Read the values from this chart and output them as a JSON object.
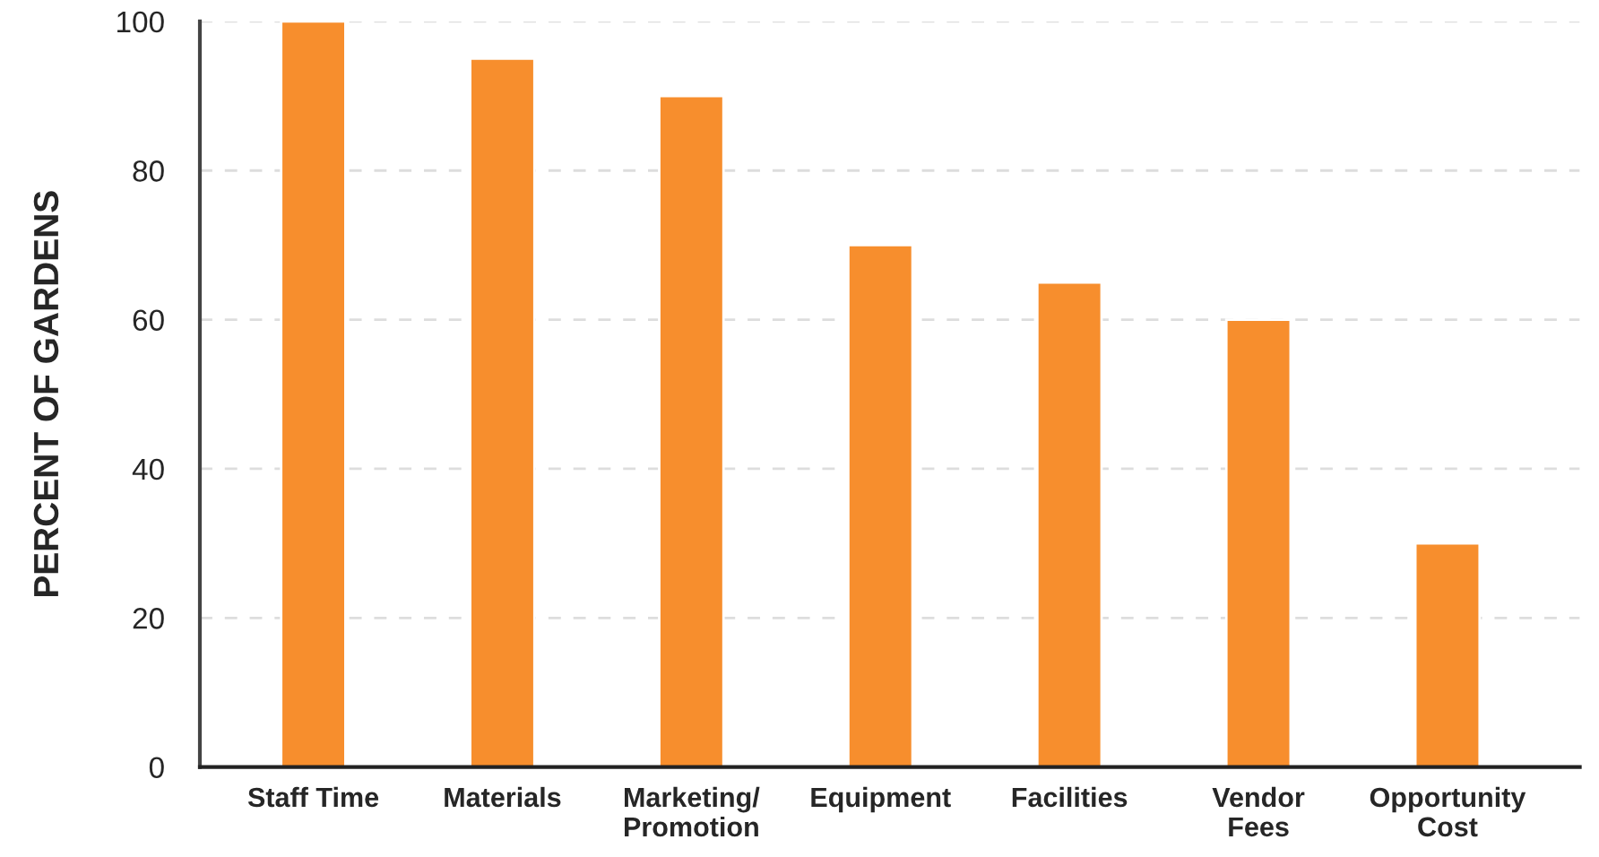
{
  "chart_data": {
    "type": "bar",
    "ylabel": "PERCENT OF GARDENS",
    "categories": [
      "Staff Time",
      "Materials",
      "Marketing/\nPromotion",
      "Equipment",
      "Facilities",
      "Vendor\nFees",
      "Opportunity\nCost"
    ],
    "values": [
      100,
      95,
      90,
      70,
      65,
      60,
      30
    ],
    "color": "#f78e2d",
    "ylim": [
      0,
      100
    ],
    "yticks": [
      0,
      20,
      40,
      60,
      80,
      100
    ],
    "grid": "y"
  }
}
